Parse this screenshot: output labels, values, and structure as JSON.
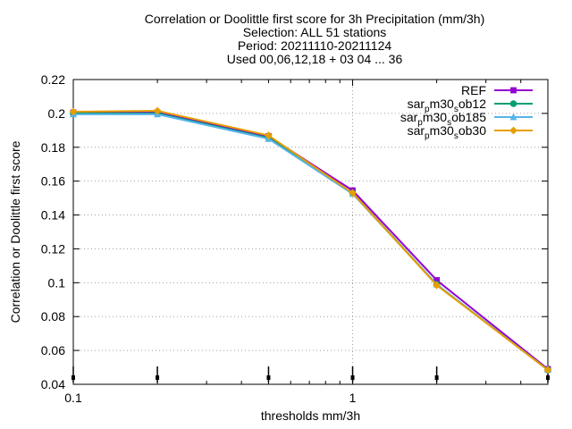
{
  "chart_data": {
    "type": "line",
    "title_lines": [
      "Correlation or Doolittle first score  for 3h Precipitation (mm/3h)",
      "Selection: ALL     51 stations",
      "Period: 20211110-20211124",
      "Used 00,06,12,18 + 03 04 ... 36"
    ],
    "xlabel": "thresholds mm/3h",
    "ylabel": "Correlation or Doolittle first score",
    "x_scale": "log",
    "xlim": [
      0.1,
      5
    ],
    "ylim": [
      0.04,
      0.22
    ],
    "x_ticks": [
      {
        "value": 0.1,
        "label": "0.1"
      },
      {
        "value": 1,
        "label": "1"
      }
    ],
    "y_ticks": [
      {
        "value": 0.04,
        "label": "0.04"
      },
      {
        "value": 0.06,
        "label": "0.06"
      },
      {
        "value": 0.08,
        "label": "0.08"
      },
      {
        "value": 0.1,
        "label": "0.1"
      },
      {
        "value": 0.12,
        "label": "0.12"
      },
      {
        "value": 0.14,
        "label": "0.14"
      },
      {
        "value": 0.16,
        "label": "0.16"
      },
      {
        "value": 0.18,
        "label": "0.18"
      },
      {
        "value": 0.2,
        "label": "0.2"
      },
      {
        "value": 0.22,
        "label": "0.22"
      }
    ],
    "grid": true,
    "legend_position": "top-right",
    "x": [
      0.1,
      0.2,
      0.5,
      1,
      2,
      5
    ],
    "series": [
      {
        "name": "REF",
        "color": "#9400d3",
        "marker": "square",
        "values": [
          0.2005,
          0.2005,
          0.1865,
          0.1545,
          0.1015,
          0.049
        ]
      },
      {
        "name": "sar_p m30_s ob12",
        "color": "#009e73",
        "marker": "circle",
        "values": [
          0.2,
          0.2,
          0.1855,
          0.153,
          0.099,
          0.0485
        ]
      },
      {
        "name": "sar_p m30_s ob185",
        "color": "#56b4e9",
        "marker": "triangle",
        "values": [
          0.1995,
          0.1995,
          0.185,
          0.1525,
          0.099,
          0.0485
        ]
      },
      {
        "name": "sar_p m30_s ob30",
        "color": "#e69f00",
        "marker": "diamond",
        "values": [
          0.201,
          0.2015,
          0.187,
          0.153,
          0.0985,
          0.0485
        ]
      }
    ],
    "legend_entries": [
      {
        "base": "REF",
        "sub1": "",
        "mid": "",
        "sub2": "",
        "tail": ""
      },
      {
        "base": "sar",
        "sub1": "p",
        "mid": "m30",
        "sub2": "s",
        "tail": "ob12"
      },
      {
        "base": "sar",
        "sub1": "p",
        "mid": "m30",
        "sub2": "s",
        "tail": "ob185"
      },
      {
        "base": "sar",
        "sub1": "p",
        "mid": "m30",
        "sub2": "s",
        "tail": "ob30"
      }
    ],
    "x_impulse_markers": [
      0.1,
      0.2,
      0.5,
      1,
      2,
      5
    ]
  }
}
